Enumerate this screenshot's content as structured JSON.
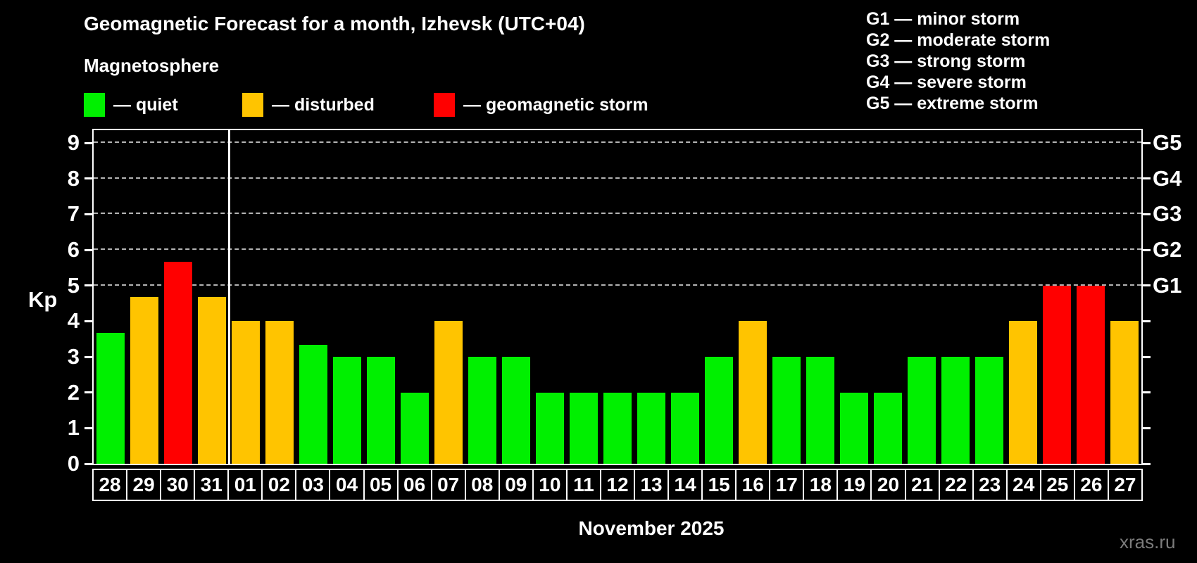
{
  "title": "Geomagnetic Forecast for a month, Izhevsk (UTC+04)",
  "subtitle": "Magnetosphere",
  "legend": {
    "items": [
      {
        "key": "quiet",
        "label": "— quiet",
        "color": "#00f000"
      },
      {
        "key": "disturbed",
        "label": "— disturbed",
        "color": "#ffc400"
      },
      {
        "key": "storm",
        "label": "— geomagnetic storm",
        "color": "#ff0000"
      }
    ]
  },
  "g_legend": {
    "lines": [
      "G1 — minor storm",
      "G2 — moderate storm",
      "G3 — strong storm",
      "G4 — severe storm",
      "G5 — extreme storm"
    ]
  },
  "footer": {
    "month": "November 2025",
    "watermark": "xras.ru"
  },
  "chart_data": {
    "type": "bar",
    "title": "Geomagnetic Forecast for a month, Izhevsk (UTC+04)",
    "ylabel": "Kp",
    "ylim": [
      0,
      9.35
    ],
    "yticks": [
      0,
      1,
      2,
      3,
      4,
      5,
      6,
      7,
      8,
      9
    ],
    "grid": "dashed-horizontal",
    "grid_levels": [
      5,
      6,
      7,
      8,
      9
    ],
    "right_axis_labels": [
      {
        "level": 5,
        "label": "G1"
      },
      {
        "level": 6,
        "label": "G2"
      },
      {
        "level": 7,
        "label": "G3"
      },
      {
        "level": 8,
        "label": "G4"
      },
      {
        "level": 9,
        "label": "G5"
      }
    ],
    "legend_position": "top-left",
    "month_separator_after_index": 3,
    "categories": [
      "28",
      "29",
      "30",
      "31",
      "01",
      "02",
      "03",
      "04",
      "05",
      "06",
      "07",
      "08",
      "09",
      "10",
      "11",
      "12",
      "13",
      "14",
      "15",
      "16",
      "17",
      "18",
      "19",
      "20",
      "21",
      "22",
      "23",
      "24",
      "25",
      "26",
      "27"
    ],
    "values": [
      3.67,
      4.67,
      5.67,
      4.67,
      4,
      4,
      3.33,
      3,
      3,
      2,
      4,
      3,
      3,
      2,
      2,
      2,
      2,
      2,
      3,
      4,
      3,
      3,
      2,
      2,
      3,
      3,
      3,
      4,
      5,
      5,
      4
    ],
    "statuses": [
      "quiet",
      "disturbed",
      "storm",
      "disturbed",
      "disturbed",
      "disturbed",
      "quiet",
      "quiet",
      "quiet",
      "quiet",
      "disturbed",
      "quiet",
      "quiet",
      "quiet",
      "quiet",
      "quiet",
      "quiet",
      "quiet",
      "quiet",
      "disturbed",
      "quiet",
      "quiet",
      "quiet",
      "quiet",
      "quiet",
      "quiet",
      "quiet",
      "disturbed",
      "storm",
      "storm",
      "disturbed"
    ],
    "colors": {
      "quiet": "#00f000",
      "disturbed": "#ffc400",
      "storm": "#ff0000"
    }
  }
}
